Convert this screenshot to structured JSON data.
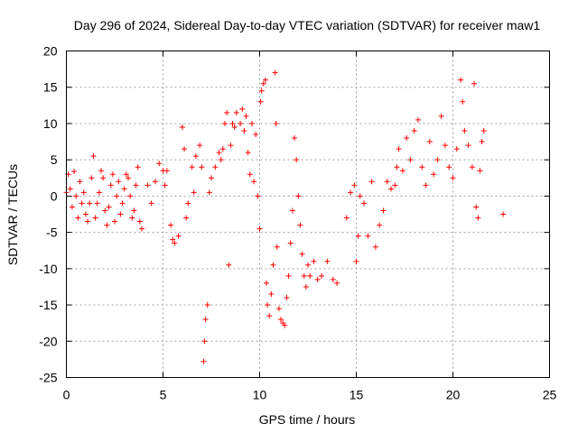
{
  "chart_data": {
    "type": "scatter",
    "title": "Day 296 of 2024, Sidereal Day-to-day VTEC variation (SDTVAR) for receiver maw1",
    "xlabel": "GPS time / hours",
    "ylabel": "SDTVAR / TECUs",
    "xlim": [
      0,
      25
    ],
    "ylim": [
      -25,
      20
    ],
    "xticks": [
      "0",
      "5",
      "10",
      "15",
      "20",
      "25"
    ],
    "yticks": [
      "-25",
      "-20",
      "-15",
      "-10",
      "-5",
      "0",
      "5",
      "10",
      "15",
      "20"
    ],
    "grid": true,
    "marker": "+",
    "color": "#ff0000",
    "series": [
      {
        "name": "SDTVAR",
        "points": [
          [
            0.0,
            0.5
          ],
          [
            0.1,
            3.0
          ],
          [
            0.2,
            1.0
          ],
          [
            0.3,
            -1.5
          ],
          [
            0.4,
            3.4
          ],
          [
            0.5,
            0.0
          ],
          [
            0.6,
            -3.0
          ],
          [
            0.7,
            2.0
          ],
          [
            0.8,
            -1.0
          ],
          [
            0.9,
            0.5
          ],
          [
            1.0,
            -2.5
          ],
          [
            1.1,
            -3.5
          ],
          [
            1.2,
            -1.0
          ],
          [
            1.3,
            2.5
          ],
          [
            1.4,
            5.5
          ],
          [
            1.5,
            -3.0
          ],
          [
            1.6,
            -1.0
          ],
          [
            1.7,
            0.5
          ],
          [
            1.8,
            3.5
          ],
          [
            1.9,
            2.5
          ],
          [
            2.0,
            -2.0
          ],
          [
            2.1,
            -4.0
          ],
          [
            2.2,
            -1.5
          ],
          [
            2.3,
            1.5
          ],
          [
            2.4,
            3.0
          ],
          [
            2.5,
            -3.5
          ],
          [
            2.6,
            0.0
          ],
          [
            2.7,
            2.0
          ],
          [
            2.8,
            -2.5
          ],
          [
            2.9,
            -1.0
          ],
          [
            3.0,
            1.0
          ],
          [
            3.1,
            3.0
          ],
          [
            3.2,
            2.5
          ],
          [
            3.3,
            0.0
          ],
          [
            3.4,
            -3.0
          ],
          [
            3.5,
            -2.0
          ],
          [
            3.6,
            1.5
          ],
          [
            3.7,
            4.0
          ],
          [
            3.8,
            -3.5
          ],
          [
            3.9,
            -4.5
          ],
          [
            4.2,
            1.5
          ],
          [
            4.4,
            -1.0
          ],
          [
            4.6,
            2.0
          ],
          [
            4.8,
            4.5
          ],
          [
            5.0,
            3.5
          ],
          [
            5.1,
            1.5
          ],
          [
            5.2,
            3.5
          ],
          [
            5.4,
            -4.0
          ],
          [
            5.5,
            -6.0
          ],
          [
            5.6,
            -6.5
          ],
          [
            5.8,
            -5.5
          ],
          [
            6.0,
            9.5
          ],
          [
            6.1,
            6.5
          ],
          [
            6.2,
            -3.0
          ],
          [
            6.3,
            -1.0
          ],
          [
            6.5,
            4.0
          ],
          [
            6.6,
            0.5
          ],
          [
            6.7,
            5.5
          ],
          [
            6.9,
            7.0
          ],
          [
            7.0,
            4.0
          ],
          [
            7.1,
            -22.8
          ],
          [
            7.15,
            -20.0
          ],
          [
            7.2,
            -17.0
          ],
          [
            7.3,
            -15.0
          ],
          [
            7.4,
            0.5
          ],
          [
            7.5,
            2.5
          ],
          [
            7.7,
            4.0
          ],
          [
            7.9,
            6.0
          ],
          [
            8.0,
            5.0
          ],
          [
            8.1,
            6.5
          ],
          [
            8.2,
            10.0
          ],
          [
            8.3,
            11.5
          ],
          [
            8.4,
            -9.5
          ],
          [
            8.5,
            7.0
          ],
          [
            8.6,
            10.0
          ],
          [
            8.7,
            9.5
          ],
          [
            8.8,
            11.5
          ],
          [
            9.0,
            10.0
          ],
          [
            9.1,
            12.0
          ],
          [
            9.2,
            9.0
          ],
          [
            9.3,
            11.0
          ],
          [
            9.4,
            6.0
          ],
          [
            9.5,
            3.0
          ],
          [
            9.6,
            10.0
          ],
          [
            9.7,
            2.0
          ],
          [
            9.8,
            8.5
          ],
          [
            9.9,
            0.0
          ],
          [
            10.0,
            -4.5
          ],
          [
            10.05,
            13.0
          ],
          [
            10.1,
            14.5
          ],
          [
            10.2,
            15.5
          ],
          [
            10.3,
            16.0
          ],
          [
            10.35,
            -12.0
          ],
          [
            10.4,
            -15.0
          ],
          [
            10.5,
            -16.5
          ],
          [
            10.6,
            -13.5
          ],
          [
            10.7,
            -9.5
          ],
          [
            10.8,
            17.0
          ],
          [
            10.85,
            10.0
          ],
          [
            10.9,
            -7.0
          ],
          [
            11.0,
            -15.5
          ],
          [
            11.1,
            -17.0
          ],
          [
            11.2,
            -17.5
          ],
          [
            11.3,
            -17.8
          ],
          [
            11.4,
            -14.0
          ],
          [
            11.5,
            -11.0
          ],
          [
            11.6,
            -6.5
          ],
          [
            11.7,
            -2.0
          ],
          [
            11.8,
            8.0
          ],
          [
            11.9,
            5.0
          ],
          [
            12.0,
            0.0
          ],
          [
            12.1,
            -4.0
          ],
          [
            12.2,
            -8.0
          ],
          [
            12.3,
            -11.0
          ],
          [
            12.4,
            -12.5
          ],
          [
            12.5,
            -9.5
          ],
          [
            12.6,
            -11.0
          ],
          [
            12.8,
            -9.0
          ],
          [
            13.0,
            -11.5
          ],
          [
            13.2,
            -11.0
          ],
          [
            13.5,
            -9.0
          ],
          [
            13.8,
            -11.5
          ],
          [
            14.0,
            -12.0
          ],
          [
            14.5,
            -3.0
          ],
          [
            14.7,
            0.5
          ],
          [
            14.9,
            1.5
          ],
          [
            15.0,
            -9.0
          ],
          [
            15.1,
            -5.5
          ],
          [
            15.2,
            0.0
          ],
          [
            15.4,
            -1.0
          ],
          [
            15.6,
            -5.5
          ],
          [
            15.8,
            2.0
          ],
          [
            16.0,
            -7.0
          ],
          [
            16.2,
            -4.0
          ],
          [
            16.4,
            -2.0
          ],
          [
            16.6,
            2.0
          ],
          [
            16.8,
            1.0
          ],
          [
            17.0,
            1.5
          ],
          [
            17.1,
            4.0
          ],
          [
            17.2,
            6.5
          ],
          [
            17.4,
            3.5
          ],
          [
            17.6,
            8.0
          ],
          [
            17.8,
            5.0
          ],
          [
            18.0,
            9.0
          ],
          [
            18.2,
            10.5
          ],
          [
            18.4,
            4.0
          ],
          [
            18.6,
            1.5
          ],
          [
            18.8,
            7.5
          ],
          [
            19.0,
            3.0
          ],
          [
            19.2,
            5.0
          ],
          [
            19.4,
            11.0
          ],
          [
            19.6,
            7.0
          ],
          [
            19.8,
            4.0
          ],
          [
            20.0,
            2.5
          ],
          [
            20.2,
            6.5
          ],
          [
            20.4,
            16.0
          ],
          [
            20.5,
            13.0
          ],
          [
            20.6,
            9.0
          ],
          [
            20.8,
            7.0
          ],
          [
            21.0,
            4.0
          ],
          [
            21.1,
            15.5
          ],
          [
            21.2,
            -1.5
          ],
          [
            21.3,
            -3.0
          ],
          [
            21.4,
            3.5
          ],
          [
            21.5,
            7.5
          ],
          [
            21.6,
            9.0
          ],
          [
            22.6,
            -2.5
          ]
        ]
      }
    ]
  }
}
